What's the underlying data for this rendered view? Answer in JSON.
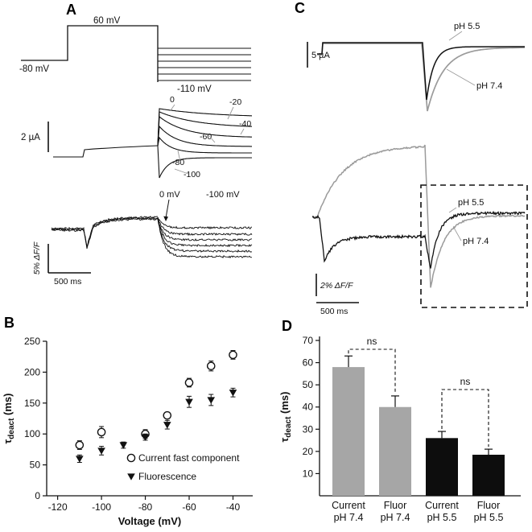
{
  "figure_labels": {
    "A": "A",
    "B": "B",
    "C": "C",
    "D": "D"
  },
  "panel_a": {
    "protocol": {
      "step_label": "60 mV",
      "hold_label": "-80 mV",
      "tail_label": "-110 mV"
    },
    "current": {
      "scale_label": "2 µA",
      "trace_labels": [
        "0",
        "-20",
        "-40",
        "-60",
        "-80",
        "-100"
      ]
    },
    "fluorescence": {
      "scale_y": "5% ΔF/F",
      "scale_x": "500 ms",
      "label_top": "0 mV",
      "label_right": "-100 mV"
    }
  },
  "panel_c": {
    "current": {
      "scale_label": "5 µA",
      "label_black": "pH 5.5",
      "label_gray": "pH 7.4"
    },
    "fluorescence": {
      "scale_y": "2% ΔF/F",
      "scale_x": "500 ms",
      "label_black": "pH 5.5",
      "label_gray": "pH 7.4"
    }
  },
  "colors": {
    "black": "#111111",
    "gray": "#9b9b9b",
    "gray_bar": "#a6a6a6",
    "black_bar": "#0d0d0d"
  },
  "chart_data": [
    {
      "panel": "B",
      "type": "scatter",
      "xlabel": "Voltage (mV)",
      "ylabel": "τ_deact (ms)",
      "xlim": [
        -125,
        -31
      ],
      "ylim": [
        0,
        250
      ],
      "xticks": [
        -120,
        -100,
        -80,
        -60,
        -40
      ],
      "yticks": [
        0,
        50,
        100,
        150,
        200,
        250
      ],
      "legend_position": "lower right",
      "series": [
        {
          "name": "Current fast component",
          "marker": "open-circle",
          "x": [
            -110,
            -100,
            -80,
            -70,
            -60,
            -50,
            -40
          ],
          "y": [
            82,
            103,
            100,
            130,
            183,
            210,
            228
          ],
          "yerr": [
            7,
            9,
            7,
            5,
            7,
            8,
            7
          ]
        },
        {
          "name": "Fluorescence",
          "marker": "filled-triangle-down",
          "x": [
            -110,
            -100,
            -90,
            -80,
            -70,
            -60,
            -50,
            -40
          ],
          "y": [
            60,
            73,
            82,
            95,
            115,
            152,
            155,
            167
          ],
          "yerr": [
            6,
            7,
            5,
            5,
            7,
            9,
            9,
            7
          ]
        }
      ]
    },
    {
      "panel": "D",
      "type": "bar",
      "ylabel": "τ_deact (ms)",
      "ylim": [
        0,
        70
      ],
      "yticks": [
        10,
        20,
        30,
        40,
        50,
        60,
        70
      ],
      "categories": [
        "Current\npH 7.4",
        "Fluor\npH 7.4",
        "Current\npH 5.5",
        "Fluor\npH 5.5"
      ],
      "values": [
        58,
        40,
        26,
        18.5
      ],
      "errors": [
        5,
        5,
        3,
        2.5
      ],
      "bar_colors": [
        "#a6a6a6",
        "#a6a6a6",
        "#0d0d0d",
        "#0d0d0d"
      ],
      "annotations": [
        {
          "label": "ns",
          "between": [
            0,
            1
          ]
        },
        {
          "label": "ns",
          "between": [
            2,
            3
          ]
        }
      ]
    }
  ]
}
